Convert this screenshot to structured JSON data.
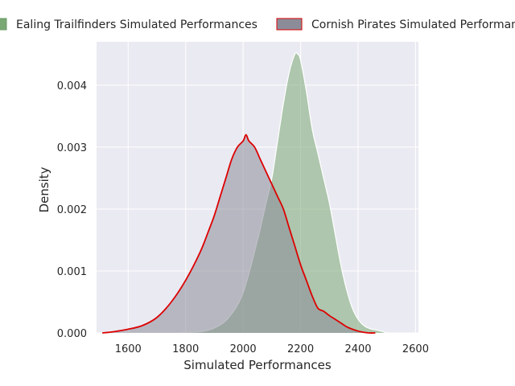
{
  "chart_data": {
    "type": "area",
    "title": "",
    "xlabel": "Simulated Performances",
    "ylabel": "Density",
    "xlim": [
      1490,
      2610
    ],
    "ylim": [
      0,
      0.0047
    ],
    "xticks": [
      1600,
      1800,
      2000,
      2200,
      2400,
      2600
    ],
    "xtick_labels": [
      "1600",
      "1800",
      "2000",
      "2200",
      "2400",
      "2600"
    ],
    "yticks": [
      0,
      0.001,
      0.002,
      0.003,
      0.004
    ],
    "ytick_labels": [
      "0.000",
      "0.001",
      "0.002",
      "0.003",
      "0.004"
    ],
    "grid": true,
    "legend_position": "top",
    "series": [
      {
        "name": "Ealing Trailfinders Simulated Performances",
        "fill": "#7aa874",
        "line": "#ffffff",
        "x": [
          1770,
          1800,
          1850,
          1900,
          1950,
          2000,
          2050,
          2080,
          2100,
          2120,
          2140,
          2160,
          2180,
          2190,
          2200,
          2220,
          2240,
          2260,
          2280,
          2300,
          2320,
          2340,
          2360,
          2380,
          2400,
          2420,
          2440,
          2460,
          2480,
          2500
        ],
        "y": [
          0.0,
          1e-05,
          2e-05,
          8e-05,
          0.00025,
          0.00065,
          0.0015,
          0.0021,
          0.0025,
          0.0031,
          0.0037,
          0.0042,
          0.0045,
          0.0045,
          0.0044,
          0.0039,
          0.0033,
          0.0029,
          0.0025,
          0.0021,
          0.0016,
          0.0011,
          0.0007,
          0.0004,
          0.00022,
          0.00012,
          7e-05,
          5e-05,
          3e-05,
          0.0
        ]
      },
      {
        "name": "Cornish Pirates Simulated Performances",
        "fill": "#8c8c99",
        "line": "#dd0000",
        "x": [
          1510,
          1550,
          1600,
          1650,
          1700,
          1750,
          1800,
          1850,
          1880,
          1900,
          1920,
          1940,
          1960,
          1980,
          2000,
          2010,
          2020,
          2040,
          2060,
          2080,
          2100,
          2120,
          2140,
          2160,
          2180,
          2200,
          2220,
          2240,
          2260,
          2280,
          2300,
          2320,
          2340,
          2360,
          2380,
          2400,
          2420,
          2440,
          2460
        ],
        "y": [
          0.0,
          2e-05,
          6e-05,
          0.00012,
          0.00025,
          0.0005,
          0.00085,
          0.0013,
          0.00165,
          0.0019,
          0.0022,
          0.0025,
          0.0028,
          0.003,
          0.0031,
          0.0032,
          0.0031,
          0.003,
          0.0028,
          0.0026,
          0.0024,
          0.0022,
          0.002,
          0.0017,
          0.0014,
          0.0011,
          0.00085,
          0.0006,
          0.0004,
          0.00035,
          0.00028,
          0.00022,
          0.00016,
          0.0001,
          6e-05,
          3e-05,
          1e-05,
          0.0,
          0.0
        ]
      }
    ]
  }
}
